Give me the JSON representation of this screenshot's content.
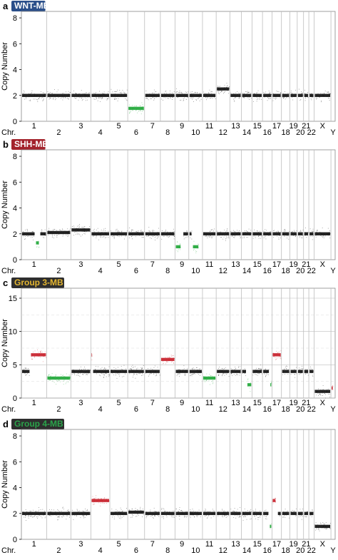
{
  "chart_data": [
    {
      "panel_label": "a",
      "title": "WNT-MB",
      "title_bg": "#2a4f8a",
      "title_color": "#ffffff",
      "type": "scatter",
      "ylabel": "Copy Number",
      "ylim": [
        0,
        8.5
      ],
      "yticks": [
        0,
        2,
        4,
        6,
        8
      ],
      "grid": "none",
      "chr_prefix": "Chr.",
      "chromosomes": [
        "1",
        "2",
        "3",
        "4",
        "5",
        "6",
        "7",
        "8",
        "9",
        "10",
        "11",
        "12",
        "13",
        "14",
        "15",
        "16",
        "17",
        "18",
        "19",
        "20",
        "21",
        "22",
        "X",
        "Y"
      ],
      "segments": [
        {
          "chr": "1",
          "start": 0,
          "end": 1,
          "cn": 2.0,
          "color": "normal"
        },
        {
          "chr": "2",
          "start": 0,
          "end": 1,
          "cn": 2.0,
          "color": "normal"
        },
        {
          "chr": "3",
          "start": 0,
          "end": 1,
          "cn": 2.0,
          "color": "normal"
        },
        {
          "chr": "4",
          "start": 0,
          "end": 1,
          "cn": 2.0,
          "color": "normal"
        },
        {
          "chr": "5",
          "start": 0,
          "end": 1,
          "cn": 2.0,
          "color": "normal"
        },
        {
          "chr": "6",
          "start": 0,
          "end": 1,
          "cn": 1.0,
          "color": "loss"
        },
        {
          "chr": "7",
          "start": 0,
          "end": 1,
          "cn": 2.0,
          "color": "normal"
        },
        {
          "chr": "8",
          "start": 0,
          "end": 1,
          "cn": 2.0,
          "color": "normal"
        },
        {
          "chr": "9",
          "start": 0,
          "end": 1,
          "cn": 2.0,
          "color": "normal"
        },
        {
          "chr": "10",
          "start": 0,
          "end": 1,
          "cn": 2.0,
          "color": "normal"
        },
        {
          "chr": "11",
          "start": 0,
          "end": 1,
          "cn": 2.0,
          "color": "normal"
        },
        {
          "chr": "12",
          "start": 0,
          "end": 1,
          "cn": 2.5,
          "color": "normal"
        },
        {
          "chr": "13",
          "start": 0,
          "end": 1,
          "cn": 2.0,
          "color": "normal"
        },
        {
          "chr": "14",
          "start": 0,
          "end": 1,
          "cn": 2.0,
          "color": "normal"
        },
        {
          "chr": "15",
          "start": 0,
          "end": 1,
          "cn": 2.0,
          "color": "normal"
        },
        {
          "chr": "16",
          "start": 0,
          "end": 1,
          "cn": 2.0,
          "color": "normal"
        },
        {
          "chr": "17",
          "start": 0,
          "end": 1,
          "cn": 2.0,
          "color": "normal"
        },
        {
          "chr": "18",
          "start": 0,
          "end": 1,
          "cn": 2.0,
          "color": "normal"
        },
        {
          "chr": "19",
          "start": 0,
          "end": 1,
          "cn": 2.0,
          "color": "normal"
        },
        {
          "chr": "20",
          "start": 0,
          "end": 1,
          "cn": 2.0,
          "color": "normal"
        },
        {
          "chr": "21",
          "start": 0,
          "end": 1,
          "cn": 2.0,
          "color": "normal"
        },
        {
          "chr": "22",
          "start": 0,
          "end": 1,
          "cn": 2.0,
          "color": "normal"
        },
        {
          "chr": "X",
          "start": 0,
          "end": 1,
          "cn": 2.0,
          "color": "normal"
        }
      ]
    },
    {
      "panel_label": "b",
      "title": "SHH-MB",
      "title_bg": "#a3232c",
      "title_color": "#ffffff",
      "type": "scatter",
      "ylabel": "Copy Number",
      "ylim": [
        0,
        8.5
      ],
      "yticks": [
        0,
        2,
        4,
        6,
        8
      ],
      "grid": "none",
      "chr_prefix": "Chr.",
      "chromosomes": [
        "1",
        "2",
        "3",
        "4",
        "5",
        "6",
        "7",
        "8",
        "9",
        "10",
        "11",
        "12",
        "13",
        "14",
        "15",
        "16",
        "17",
        "18",
        "19",
        "20",
        "21",
        "22",
        "X",
        "Y"
      ],
      "segments": [
        {
          "chr": "1",
          "start": 0,
          "end": 0.55,
          "cn": 2.0,
          "color": "normal"
        },
        {
          "chr": "1",
          "start": 0.55,
          "end": 0.72,
          "cn": 1.3,
          "color": "loss"
        },
        {
          "chr": "1",
          "start": 0.72,
          "end": 1,
          "cn": 2.0,
          "color": "normal"
        },
        {
          "chr": "2",
          "start": 0,
          "end": 1,
          "cn": 2.1,
          "color": "normal"
        },
        {
          "chr": "3",
          "start": 0,
          "end": 1,
          "cn": 2.3,
          "color": "normal"
        },
        {
          "chr": "4",
          "start": 0,
          "end": 1,
          "cn": 2.0,
          "color": "normal"
        },
        {
          "chr": "5",
          "start": 0,
          "end": 1,
          "cn": 2.0,
          "color": "normal"
        },
        {
          "chr": "6",
          "start": 0,
          "end": 1,
          "cn": 2.0,
          "color": "normal"
        },
        {
          "chr": "7",
          "start": 0,
          "end": 1,
          "cn": 2.0,
          "color": "normal"
        },
        {
          "chr": "8",
          "start": 0,
          "end": 1,
          "cn": 2.0,
          "color": "normal"
        },
        {
          "chr": "9",
          "start": 0,
          "end": 0.45,
          "cn": 1.0,
          "color": "loss"
        },
        {
          "chr": "9",
          "start": 0.55,
          "end": 1,
          "cn": 2.0,
          "color": "normal"
        },
        {
          "chr": "10",
          "start": 0,
          "end": 0.25,
          "cn": 2.0,
          "color": "normal"
        },
        {
          "chr": "10",
          "start": 0.25,
          "end": 0.75,
          "cn": 1.0,
          "color": "loss"
        },
        {
          "chr": "11",
          "start": 0,
          "end": 1,
          "cn": 2.0,
          "color": "normal"
        },
        {
          "chr": "12",
          "start": 0,
          "end": 1,
          "cn": 2.0,
          "color": "normal"
        },
        {
          "chr": "13",
          "start": 0,
          "end": 1,
          "cn": 2.0,
          "color": "normal"
        },
        {
          "chr": "14",
          "start": 0,
          "end": 1,
          "cn": 2.0,
          "color": "normal"
        },
        {
          "chr": "15",
          "start": 0,
          "end": 1,
          "cn": 2.0,
          "color": "normal"
        },
        {
          "chr": "16",
          "start": 0,
          "end": 1,
          "cn": 2.0,
          "color": "normal"
        },
        {
          "chr": "17",
          "start": 0,
          "end": 1,
          "cn": 2.0,
          "color": "normal"
        },
        {
          "chr": "18",
          "start": 0,
          "end": 1,
          "cn": 2.0,
          "color": "normal"
        },
        {
          "chr": "19",
          "start": 0,
          "end": 1,
          "cn": 2.0,
          "color": "normal"
        },
        {
          "chr": "20",
          "start": 0,
          "end": 1,
          "cn": 2.0,
          "color": "normal"
        },
        {
          "chr": "21",
          "start": 0,
          "end": 1,
          "cn": 2.0,
          "color": "normal"
        },
        {
          "chr": "22",
          "start": 0,
          "end": 1,
          "cn": 2.0,
          "color": "normal"
        },
        {
          "chr": "X",
          "start": 0,
          "end": 1,
          "cn": 2.0,
          "color": "normal"
        }
      ]
    },
    {
      "panel_label": "c",
      "title": "Group 3-MB",
      "title_bg": "#2e2e2e",
      "title_color": "#e3b530",
      "type": "scatter",
      "ylabel": "Copy Number",
      "ylim": [
        0,
        16.5
      ],
      "yticks": [
        0,
        5,
        10,
        15
      ],
      "grid": "horizontal",
      "chr_prefix": "Chr.",
      "chromosomes": [
        "1",
        "2",
        "3",
        "4",
        "5",
        "6",
        "7",
        "8",
        "9",
        "10",
        "11",
        "12",
        "13",
        "14",
        "15",
        "16",
        "17",
        "18",
        "19",
        "20",
        "21",
        "22",
        "X",
        "Y"
      ],
      "segments": [
        {
          "chr": "1",
          "start": 0,
          "end": 0.35,
          "cn": 4.0,
          "color": "normal"
        },
        {
          "chr": "1",
          "start": 0.35,
          "end": 1,
          "cn": 6.5,
          "color": "gain"
        },
        {
          "chr": "2",
          "start": 0,
          "end": 1,
          "cn": 3.0,
          "color": "loss"
        },
        {
          "chr": "3",
          "start": 0,
          "end": 1,
          "cn": 4.0,
          "color": "normal"
        },
        {
          "chr": "4",
          "start": 0,
          "end": 0.08,
          "cn": 6.5,
          "color": "gain"
        },
        {
          "chr": "4",
          "start": 0.08,
          "end": 1,
          "cn": 4.0,
          "color": "normal"
        },
        {
          "chr": "5",
          "start": 0,
          "end": 1,
          "cn": 4.0,
          "color": "normal"
        },
        {
          "chr": "6",
          "start": 0,
          "end": 1,
          "cn": 4.0,
          "color": "normal"
        },
        {
          "chr": "7",
          "start": 0,
          "end": 1,
          "cn": 4.0,
          "color": "normal"
        },
        {
          "chr": "8",
          "start": 0,
          "end": 1,
          "cn": 5.8,
          "color": "gain"
        },
        {
          "chr": "9",
          "start": 0,
          "end": 1,
          "cn": 4.0,
          "color": "normal"
        },
        {
          "chr": "10",
          "start": 0,
          "end": 1,
          "cn": 4.0,
          "color": "normal"
        },
        {
          "chr": "11",
          "start": 0,
          "end": 1,
          "cn": 3.0,
          "color": "loss"
        },
        {
          "chr": "12",
          "start": 0,
          "end": 1,
          "cn": 4.0,
          "color": "normal"
        },
        {
          "chr": "13",
          "start": 0,
          "end": 1,
          "cn": 4.0,
          "color": "normal"
        },
        {
          "chr": "14",
          "start": 0,
          "end": 0.5,
          "cn": 4.0,
          "color": "normal"
        },
        {
          "chr": "14",
          "start": 0.5,
          "end": 1,
          "cn": 2.0,
          "color": "loss"
        },
        {
          "chr": "15",
          "start": 0,
          "end": 1,
          "cn": 4.0,
          "color": "normal"
        },
        {
          "chr": "16",
          "start": 0,
          "end": 0.75,
          "cn": 4.0,
          "color": "normal"
        },
        {
          "chr": "16",
          "start": 0.75,
          "end": 1,
          "cn": 2.0,
          "color": "loss"
        },
        {
          "chr": "17",
          "start": 0,
          "end": 1,
          "cn": 6.5,
          "color": "gain"
        },
        {
          "chr": "18",
          "start": 0,
          "end": 1,
          "cn": 4.0,
          "color": "normal"
        },
        {
          "chr": "19",
          "start": 0,
          "end": 1,
          "cn": 4.0,
          "color": "normal"
        },
        {
          "chr": "20",
          "start": 0,
          "end": 1,
          "cn": 4.0,
          "color": "normal"
        },
        {
          "chr": "21",
          "start": 0,
          "end": 1,
          "cn": 4.0,
          "color": "normal"
        },
        {
          "chr": "22",
          "start": 0,
          "end": 1,
          "cn": 4.0,
          "color": "normal"
        },
        {
          "chr": "X",
          "start": 0,
          "end": 1,
          "cn": 1.0,
          "color": "normal"
        },
        {
          "chr": "Y",
          "start": 0,
          "end": 0.6,
          "cn": 1.5,
          "color": "gain"
        }
      ]
    },
    {
      "panel_label": "d",
      "title": "Group 4-MB",
      "title_bg": "#2e2e2e",
      "title_color": "#2aa34a",
      "type": "scatter",
      "ylabel": "Copy Number",
      "ylim": [
        0,
        8.5
      ],
      "yticks": [
        0,
        2,
        4,
        6,
        8
      ],
      "grid": "none",
      "chr_prefix": "Chr.",
      "chromosomes": [
        "1",
        "2",
        "3",
        "4",
        "5",
        "6",
        "7",
        "8",
        "9",
        "10",
        "11",
        "12",
        "13",
        "14",
        "15",
        "16",
        "17",
        "18",
        "19",
        "20",
        "21",
        "22",
        "X",
        "Y"
      ],
      "segments": [
        {
          "chr": "1",
          "start": 0,
          "end": 1,
          "cn": 2.0,
          "color": "normal"
        },
        {
          "chr": "2",
          "start": 0,
          "end": 1,
          "cn": 2.0,
          "color": "normal"
        },
        {
          "chr": "3",
          "start": 0,
          "end": 1,
          "cn": 2.0,
          "color": "normal"
        },
        {
          "chr": "4",
          "start": 0,
          "end": 1,
          "cn": 3.0,
          "color": "gain"
        },
        {
          "chr": "5",
          "start": 0,
          "end": 1,
          "cn": 2.0,
          "color": "normal"
        },
        {
          "chr": "6",
          "start": 0,
          "end": 1,
          "cn": 2.1,
          "color": "normal"
        },
        {
          "chr": "7",
          "start": 0,
          "end": 1,
          "cn": 2.0,
          "color": "normal"
        },
        {
          "chr": "8",
          "start": 0,
          "end": 1,
          "cn": 2.0,
          "color": "normal"
        },
        {
          "chr": "9",
          "start": 0,
          "end": 1,
          "cn": 2.0,
          "color": "normal"
        },
        {
          "chr": "10",
          "start": 0,
          "end": 1,
          "cn": 2.0,
          "color": "normal"
        },
        {
          "chr": "11",
          "start": 0,
          "end": 1,
          "cn": 2.0,
          "color": "normal"
        },
        {
          "chr": "12",
          "start": 0,
          "end": 1,
          "cn": 2.0,
          "color": "normal"
        },
        {
          "chr": "13",
          "start": 0,
          "end": 1,
          "cn": 2.0,
          "color": "normal"
        },
        {
          "chr": "14",
          "start": 0,
          "end": 1,
          "cn": 2.0,
          "color": "normal"
        },
        {
          "chr": "15",
          "start": 0,
          "end": 1,
          "cn": 2.0,
          "color": "normal"
        },
        {
          "chr": "16",
          "start": 0,
          "end": 0.7,
          "cn": 2.0,
          "color": "normal"
        },
        {
          "chr": "16",
          "start": 0.7,
          "end": 1,
          "cn": 1.0,
          "color": "loss"
        },
        {
          "chr": "17",
          "start": 0,
          "end": 0.45,
          "cn": 3.0,
          "color": "gain"
        },
        {
          "chr": "17",
          "start": 0.55,
          "end": 1,
          "cn": 2.0,
          "color": "normal"
        },
        {
          "chr": "18",
          "start": 0,
          "end": 1,
          "cn": 2.0,
          "color": "normal"
        },
        {
          "chr": "19",
          "start": 0,
          "end": 1,
          "cn": 2.0,
          "color": "normal"
        },
        {
          "chr": "20",
          "start": 0,
          "end": 1,
          "cn": 2.0,
          "color": "normal"
        },
        {
          "chr": "21",
          "start": 0,
          "end": 1,
          "cn": 2.0,
          "color": "normal"
        },
        {
          "chr": "22",
          "start": 0,
          "end": 1,
          "cn": 2.0,
          "color": "normal"
        },
        {
          "chr": "X",
          "start": 0,
          "end": 1,
          "cn": 1.0,
          "color": "normal"
        }
      ]
    }
  ],
  "colors": {
    "normal": "#111111",
    "gain": "#c8202a",
    "loss": "#22a83a",
    "gridline": "#bdbdbd",
    "axis": "#888888"
  }
}
